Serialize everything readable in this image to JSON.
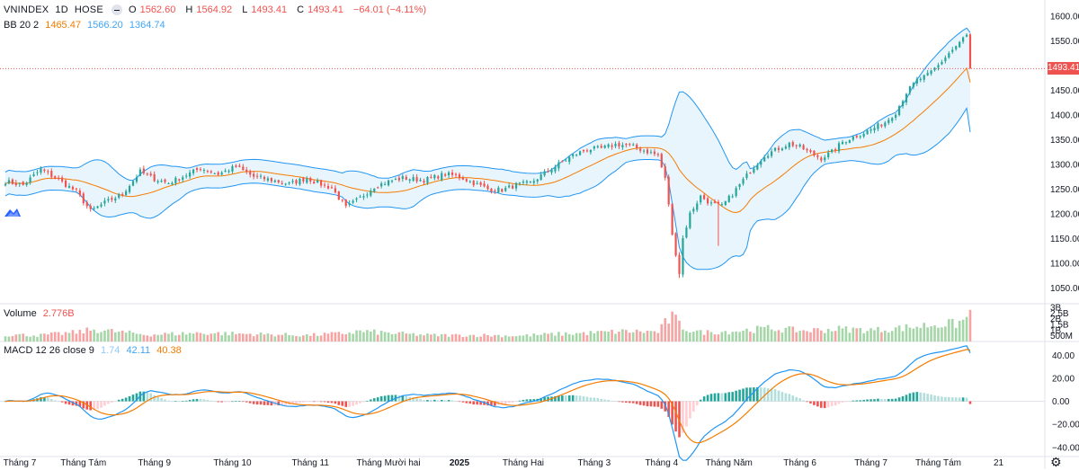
{
  "header": {
    "symbol": "VNINDEX",
    "interval": "1D",
    "exchange": "HOSE",
    "open_label": "O",
    "open": "1562.60",
    "high_label": "H",
    "high": "1564.92",
    "low_label": "L",
    "low": "1493.41",
    "close_label": "C",
    "close": "1493.41",
    "change": "−64.01 (−4.11%)"
  },
  "bb_legend": {
    "name": "BB 20 2",
    "basis": "1465.47",
    "upper": "1566.20",
    "lower": "1364.74"
  },
  "volume_legend": {
    "name": "Volume",
    "value": "2.776B"
  },
  "macd_legend": {
    "name": "MACD 12 26 close 9",
    "hist": "1.74",
    "macd": "42.11",
    "signal": "40.38"
  },
  "last_price": "1493.41",
  "colors": {
    "up": "#26a69a",
    "down": "#ef5350",
    "bb_basis": "#f57c00",
    "bb_band": "#2196f3",
    "macd": "#2196f3",
    "signal": "#f57c00"
  },
  "chart_data": {
    "type": "candlestick",
    "title": "VNINDEX 1D HOSE",
    "price_axis": {
      "range": [
        1025,
        1625
      ],
      "ticks": [
        "1600.00",
        "1550.00",
        "1500.00",
        "1450.00",
        "1400.00",
        "1350.00",
        "1300.00",
        "1250.00",
        "1200.00",
        "1150.00",
        "1100.00",
        "1050.00"
      ],
      "tick_values": [
        1600,
        1550,
        1500,
        1450,
        1400,
        1350,
        1300,
        1250,
        1200,
        1150,
        1100,
        1050
      ]
    },
    "volume_axis": {
      "range": [
        0,
        3.0
      ],
      "ticks": [
        "3B",
        "2.5B",
        "2B",
        "1.5B",
        "1B",
        "500M"
      ],
      "tick_values": [
        3.0,
        2.5,
        2.0,
        1.5,
        1.0,
        0.5
      ]
    },
    "macd_axis": {
      "range": [
        -48,
        52
      ],
      "ticks": [
        "40.00",
        "20.00",
        "0.00",
        "−20.00",
        "−40.00"
      ],
      "tick_values": [
        40,
        20,
        0,
        -20,
        -40
      ]
    },
    "time_axis": {
      "labels": [
        "Tháng 7",
        "Tháng Tám",
        "Tháng 9",
        "Tháng 10",
        "Tháng 11",
        "Tháng Mười hai",
        "2025",
        "Tháng Hai",
        "Tháng 3",
        "Tháng 4",
        "Tháng Năm",
        "Tháng 6",
        "Tháng 7",
        "Tháng Tám",
        "21"
      ],
      "label_bars": [
        0,
        22,
        42,
        64,
        86,
        108,
        128,
        146,
        166,
        185,
        204,
        224,
        244,
        263,
        280
      ]
    },
    "close_anchors": [
      [
        0,
        1265
      ],
      [
        5,
        1258
      ],
      [
        10,
        1290
      ],
      [
        15,
        1268
      ],
      [
        20,
        1245
      ],
      [
        24,
        1205
      ],
      [
        28,
        1222
      ],
      [
        33,
        1240
      ],
      [
        38,
        1285
      ],
      [
        42,
        1270
      ],
      [
        46,
        1262
      ],
      [
        50,
        1275
      ],
      [
        55,
        1292
      ],
      [
        60,
        1280
      ],
      [
        65,
        1295
      ],
      [
        70,
        1275
      ],
      [
        75,
        1268
      ],
      [
        80,
        1260
      ],
      [
        85,
        1272
      ],
      [
        88,
        1262
      ],
      [
        92,
        1252
      ],
      [
        96,
        1212
      ],
      [
        100,
        1232
      ],
      [
        104,
        1255
      ],
      [
        108,
        1265
      ],
      [
        112,
        1272
      ],
      [
        118,
        1268
      ],
      [
        124,
        1280
      ],
      [
        128,
        1275
      ],
      [
        132,
        1262
      ],
      [
        136,
        1250
      ],
      [
        140,
        1248
      ],
      [
        144,
        1258
      ],
      [
        148,
        1262
      ],
      [
        152,
        1282
      ],
      [
        156,
        1300
      ],
      [
        160,
        1318
      ],
      [
        164,
        1330
      ],
      [
        168,
        1332
      ],
      [
        172,
        1340
      ],
      [
        176,
        1338
      ],
      [
        180,
        1328
      ],
      [
        184,
        1318
      ],
      [
        186,
        1270
      ],
      [
        187,
        1220
      ],
      [
        188,
        1155
      ],
      [
        189,
        1120
      ],
      [
        190,
        1080
      ],
      [
        191,
        1150
      ],
      [
        193,
        1200
      ],
      [
        196,
        1235
      ],
      [
        199,
        1220
      ],
      [
        202,
        1215
      ],
      [
        205,
        1240
      ],
      [
        208,
        1268
      ],
      [
        211,
        1295
      ],
      [
        214,
        1318
      ],
      [
        218,
        1332
      ],
      [
        221,
        1342
      ],
      [
        224,
        1335
      ],
      [
        227,
        1322
      ],
      [
        230,
        1312
      ],
      [
        233,
        1325
      ],
      [
        236,
        1345
      ],
      [
        240,
        1358
      ],
      [
        244,
        1370
      ],
      [
        248,
        1385
      ],
      [
        251,
        1405
      ],
      [
        254,
        1445
      ],
      [
        257,
        1470
      ],
      [
        260,
        1480
      ],
      [
        263,
        1500
      ],
      [
        266,
        1525
      ],
      [
        269,
        1545
      ],
      [
        270,
        1555
      ],
      [
        271,
        1562
      ],
      [
        272,
        1493
      ]
    ],
    "volume_anchors": [
      [
        0,
        0.6
      ],
      [
        10,
        0.55
      ],
      [
        20,
        0.8
      ],
      [
        25,
        1.05
      ],
      [
        40,
        0.6
      ],
      [
        55,
        0.75
      ],
      [
        70,
        0.65
      ],
      [
        85,
        0.55
      ],
      [
        95,
        0.7
      ],
      [
        100,
        0.9
      ],
      [
        110,
        0.7
      ],
      [
        120,
        0.55
      ],
      [
        135,
        0.55
      ],
      [
        145,
        0.5
      ],
      [
        155,
        0.65
      ],
      [
        165,
        0.75
      ],
      [
        175,
        0.9
      ],
      [
        184,
        0.85
      ],
      [
        186,
        1.6
      ],
      [
        188,
        2.2
      ],
      [
        190,
        1.5
      ],
      [
        192,
        1.1
      ],
      [
        196,
        0.8
      ],
      [
        205,
        0.9
      ],
      [
        215,
        1.15
      ],
      [
        225,
        0.95
      ],
      [
        235,
        1.1
      ],
      [
        245,
        1.0
      ],
      [
        255,
        1.25
      ],
      [
        262,
        1.5
      ],
      [
        268,
        1.55
      ],
      [
        271,
        2.0
      ],
      [
        272,
        2.776
      ]
    ],
    "last_bar": {
      "open": 1562.6,
      "high": 1564.92,
      "low": 1493.41,
      "close": 1493.41,
      "volume": 2.776
    },
    "indicators": {
      "bollinger": {
        "period": 20,
        "stddev": 2,
        "basis": 1465.47,
        "upper": 1566.2,
        "lower": 1364.74
      },
      "macd": {
        "fast": 12,
        "slow": 26,
        "signal": 9,
        "histogram": 1.74,
        "macd": 42.11,
        "signal_value": 40.38
      }
    }
  }
}
